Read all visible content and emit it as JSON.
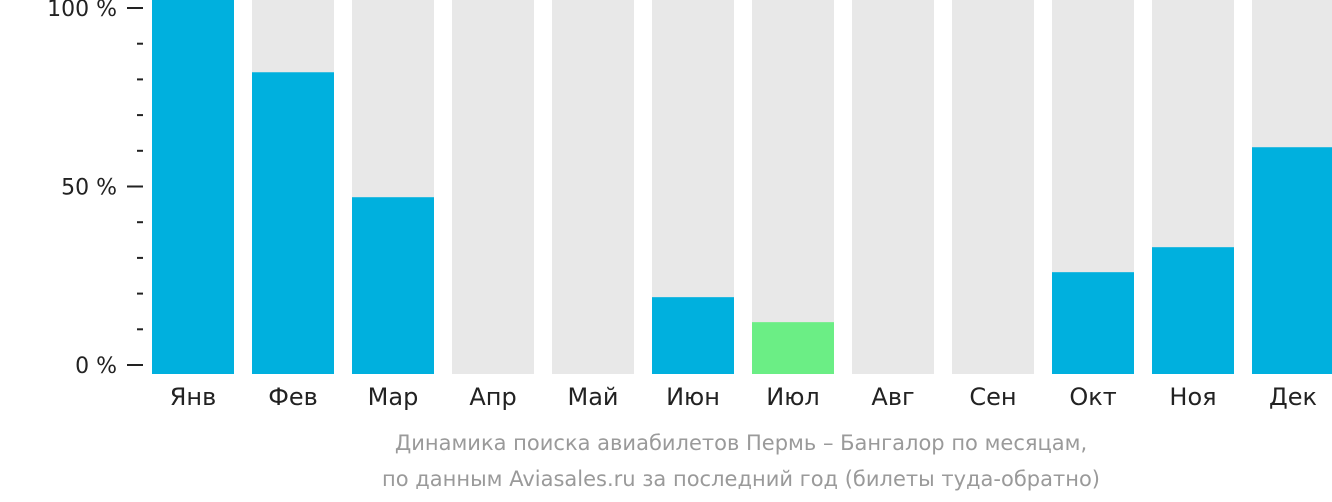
{
  "chart_data": {
    "type": "bar",
    "categories": [
      "Янв",
      "Фев",
      "Мар",
      "Апр",
      "Май",
      "Июн",
      "Июл",
      "Авг",
      "Сен",
      "Окт",
      "Ноя",
      "Дек"
    ],
    "values": [
      100,
      82,
      47,
      0,
      0,
      19,
      12,
      0,
      0,
      26,
      33,
      61
    ],
    "highlight_index": 6,
    "ylim": [
      0,
      100
    ],
    "yticks": [
      {
        "value": 0,
        "label": "0 %"
      },
      {
        "value": 50,
        "label": "50 %"
      },
      {
        "value": 100,
        "label": "100 %"
      }
    ],
    "minor_tick_step": 10,
    "colors": {
      "bar": "#00b0de",
      "highlight": "#6bee85",
      "background_bar": "#e8e8e8",
      "axis": "#222222"
    },
    "caption_lines": [
      "Динамика поиска авиабилетов Пермь – Бангалор по месяцам,",
      "по данным Aviasales.ru за последний год (билеты туда-обратно)"
    ]
  }
}
